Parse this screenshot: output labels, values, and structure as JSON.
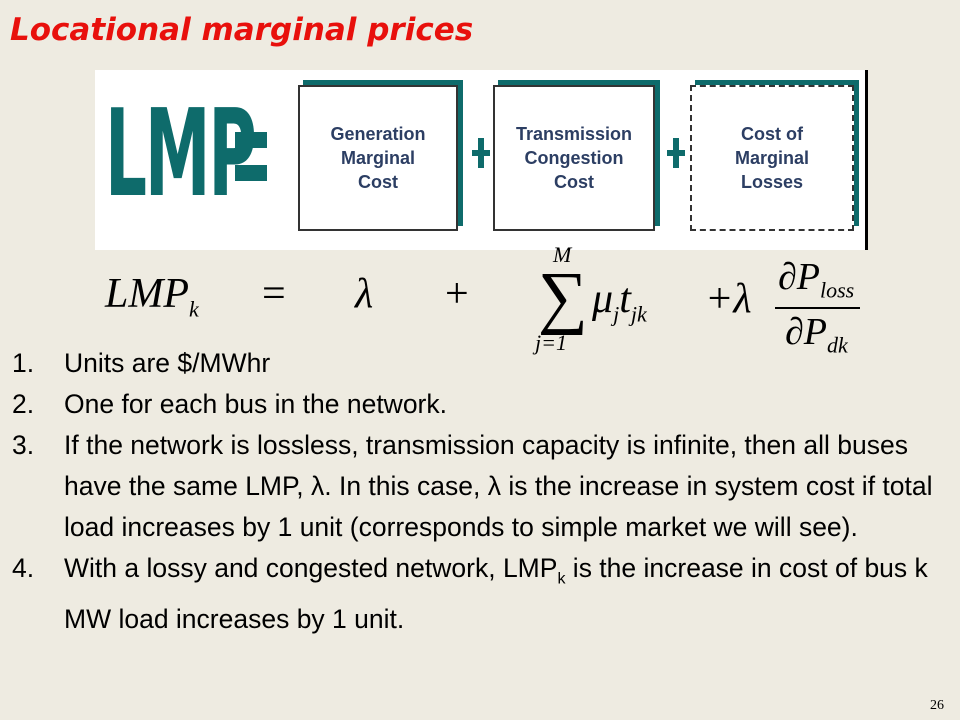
{
  "header": {
    "title": "Locational marginal prices"
  },
  "diagram": {
    "lhs": "LMP",
    "boxes": [
      {
        "lines": [
          "Generation",
          "Marginal",
          "Cost"
        ]
      },
      {
        "lines": [
          "Transmission",
          "Congestion",
          "Cost"
        ]
      },
      {
        "lines": [
          "Cost of",
          "Marginal",
          "Losses"
        ]
      }
    ]
  },
  "equation": {
    "lhs": "LMP",
    "lhs_sub": "k",
    "eq": "=",
    "lambda": "λ",
    "plus": "+",
    "sum": "∑",
    "sum_upper": "M",
    "sum_lower": "j=1",
    "mu": "μ",
    "mu_sub": "j",
    "t": "t",
    "t_sub": "jk",
    "plus_lambda": "+λ",
    "num": "∂P",
    "num_sub": "loss",
    "den": "∂P",
    "den_sub": "dk"
  },
  "list": {
    "items": [
      {
        "number": "1.",
        "text": "Units are $/MWhr"
      },
      {
        "number": "2.",
        "text": "One for each bus in the network."
      },
      {
        "number": "3.",
        "text": "If the network is lossless, transmission capacity is infinite, then all buses have the same LMP, λ. In this case, λ is the increase in system cost if total load increases by 1 unit (corresponds to simple market we will see)."
      },
      {
        "number": "4.",
        "text": "With a lossy and congested network, LMP",
        "sub": "k",
        "rest": " is the increase in cost of bus k MW load increases by 1 unit."
      }
    ]
  },
  "footer": {
    "page": "26"
  }
}
